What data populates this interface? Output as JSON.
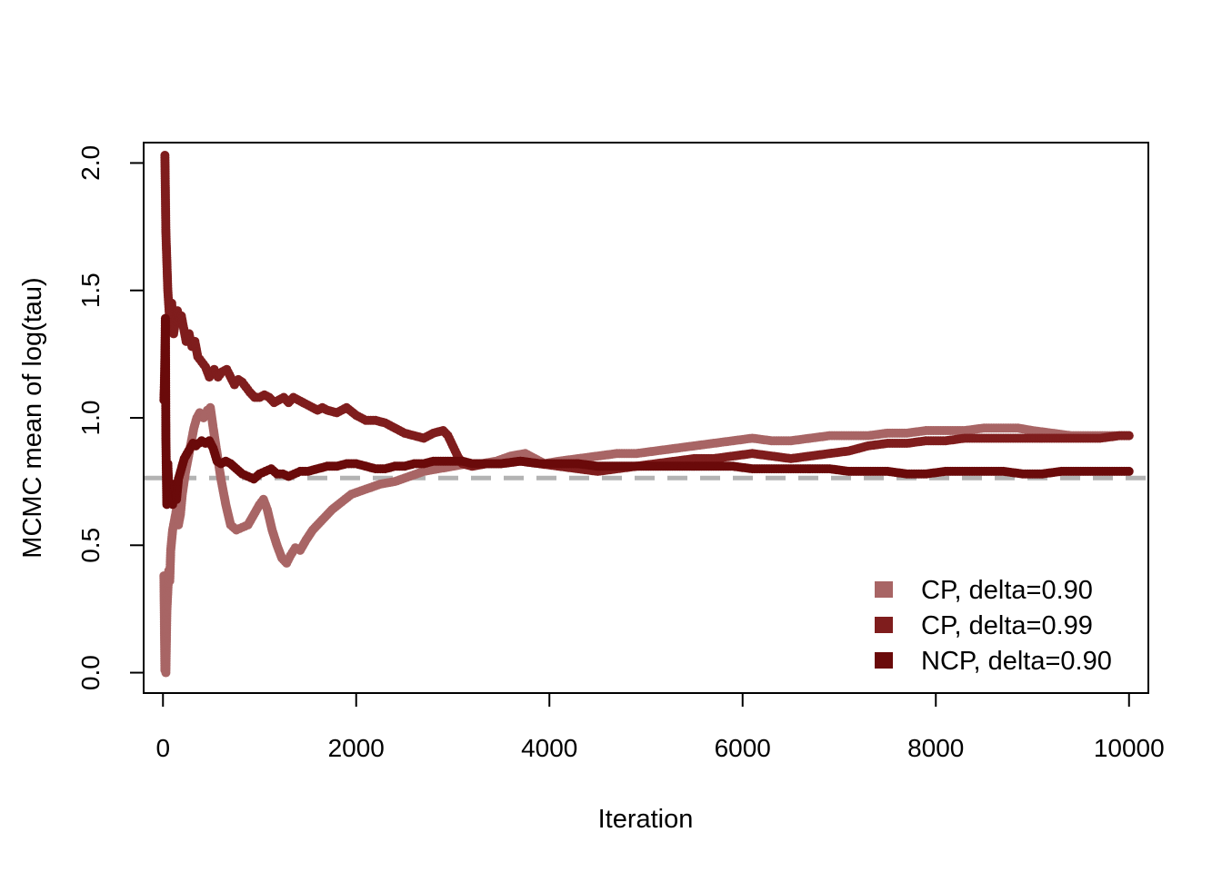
{
  "chart_data": {
    "type": "scatter",
    "title": "",
    "xlabel": "Iteration",
    "ylabel": "MCMC mean of log(tau)",
    "xlim": [
      -200,
      10200
    ],
    "ylim": [
      -0.08,
      2.08
    ],
    "xticks": [
      0,
      2000,
      4000,
      6000,
      8000,
      10000
    ],
    "xtick_labels": [
      "0",
      "2000",
      "4000",
      "6000",
      "8000",
      "10000"
    ],
    "yticks": [
      0.0,
      0.5,
      1.0,
      1.5,
      2.0
    ],
    "ytick_labels": [
      "0.0",
      "0.5",
      "1.0",
      "1.5",
      "2.0"
    ],
    "grid": false,
    "legend_position": "bottom-right",
    "reference_line": {
      "y": 0.764,
      "style": "dashed",
      "color": "#b3b3b3"
    },
    "series": [
      {
        "name": "CP, delta=0.90",
        "color": "#a86565",
        "points": [
          [
            10,
            0.38
          ],
          [
            20,
            0.01
          ],
          [
            30,
            0.0
          ],
          [
            40,
            0.24
          ],
          [
            60,
            0.4
          ],
          [
            70,
            0.36
          ],
          [
            80,
            0.48
          ],
          [
            100,
            0.56
          ],
          [
            120,
            0.6
          ],
          [
            140,
            0.64
          ],
          [
            160,
            0.58
          ],
          [
            180,
            0.62
          ],
          [
            200,
            0.7
          ],
          [
            230,
            0.78
          ],
          [
            260,
            0.84
          ],
          [
            290,
            0.9
          ],
          [
            320,
            0.96
          ],
          [
            350,
            1.0
          ],
          [
            380,
            1.02
          ],
          [
            420,
            1.0
          ],
          [
            460,
            1.03
          ],
          [
            490,
            1.04
          ],
          [
            520,
            0.96
          ],
          [
            560,
            0.86
          ],
          [
            600,
            0.76
          ],
          [
            650,
            0.66
          ],
          [
            700,
            0.58
          ],
          [
            760,
            0.56
          ],
          [
            820,
            0.57
          ],
          [
            880,
            0.58
          ],
          [
            940,
            0.62
          ],
          [
            1000,
            0.66
          ],
          [
            1040,
            0.68
          ],
          [
            1080,
            0.64
          ],
          [
            1130,
            0.56
          ],
          [
            1180,
            0.5
          ],
          [
            1230,
            0.45
          ],
          [
            1280,
            0.43
          ],
          [
            1320,
            0.46
          ],
          [
            1370,
            0.49
          ],
          [
            1420,
            0.48
          ],
          [
            1480,
            0.52
          ],
          [
            1550,
            0.56
          ],
          [
            1650,
            0.6
          ],
          [
            1750,
            0.64
          ],
          [
            1850,
            0.67
          ],
          [
            1950,
            0.7
          ],
          [
            2100,
            0.72
          ],
          [
            2250,
            0.74
          ],
          [
            2400,
            0.75
          ],
          [
            2550,
            0.77
          ],
          [
            2700,
            0.79
          ],
          [
            2850,
            0.8
          ],
          [
            3000,
            0.81
          ],
          [
            3150,
            0.82
          ],
          [
            3300,
            0.82
          ],
          [
            3450,
            0.83
          ],
          [
            3600,
            0.85
          ],
          [
            3750,
            0.86
          ],
          [
            3850,
            0.84
          ],
          [
            3950,
            0.82
          ],
          [
            4100,
            0.83
          ],
          [
            4300,
            0.84
          ],
          [
            4500,
            0.85
          ],
          [
            4700,
            0.86
          ],
          [
            4900,
            0.86
          ],
          [
            5100,
            0.87
          ],
          [
            5300,
            0.88
          ],
          [
            5500,
            0.89
          ],
          [
            5700,
            0.9
          ],
          [
            5900,
            0.91
          ],
          [
            6100,
            0.92
          ],
          [
            6300,
            0.91
          ],
          [
            6500,
            0.91
          ],
          [
            6700,
            0.92
          ],
          [
            6900,
            0.93
          ],
          [
            7100,
            0.93
          ],
          [
            7300,
            0.93
          ],
          [
            7500,
            0.94
          ],
          [
            7700,
            0.94
          ],
          [
            7900,
            0.95
          ],
          [
            8100,
            0.95
          ],
          [
            8300,
            0.95
          ],
          [
            8500,
            0.96
          ],
          [
            8700,
            0.96
          ],
          [
            8850,
            0.96
          ],
          [
            9000,
            0.95
          ],
          [
            9200,
            0.94
          ],
          [
            9400,
            0.93
          ],
          [
            9600,
            0.93
          ],
          [
            9800,
            0.93
          ],
          [
            10000,
            0.93
          ]
        ]
      },
      {
        "name": "CP, delta=0.99",
        "color": "#7f1d1d",
        "points": [
          [
            20,
            2.03
          ],
          [
            30,
            1.73
          ],
          [
            50,
            1.5
          ],
          [
            70,
            1.38
          ],
          [
            90,
            1.45
          ],
          [
            110,
            1.33
          ],
          [
            130,
            1.38
          ],
          [
            150,
            1.42
          ],
          [
            170,
            1.38
          ],
          [
            190,
            1.4
          ],
          [
            210,
            1.36
          ],
          [
            240,
            1.3
          ],
          [
            270,
            1.33
          ],
          [
            300,
            1.28
          ],
          [
            330,
            1.3
          ],
          [
            360,
            1.24
          ],
          [
            400,
            1.22
          ],
          [
            440,
            1.2
          ],
          [
            480,
            1.16
          ],
          [
            530,
            1.19
          ],
          [
            570,
            1.16
          ],
          [
            610,
            1.18
          ],
          [
            660,
            1.19
          ],
          [
            700,
            1.16
          ],
          [
            740,
            1.13
          ],
          [
            780,
            1.15
          ],
          [
            820,
            1.14
          ],
          [
            860,
            1.12
          ],
          [
            900,
            1.1
          ],
          [
            950,
            1.08
          ],
          [
            1000,
            1.08
          ],
          [
            1050,
            1.09
          ],
          [
            1100,
            1.08
          ],
          [
            1150,
            1.06
          ],
          [
            1200,
            1.07
          ],
          [
            1250,
            1.08
          ],
          [
            1300,
            1.06
          ],
          [
            1350,
            1.08
          ],
          [
            1400,
            1.07
          ],
          [
            1450,
            1.06
          ],
          [
            1500,
            1.05
          ],
          [
            1550,
            1.04
          ],
          [
            1600,
            1.03
          ],
          [
            1650,
            1.04
          ],
          [
            1700,
            1.03
          ],
          [
            1800,
            1.02
          ],
          [
            1900,
            1.04
          ],
          [
            2000,
            1.01
          ],
          [
            2100,
            0.99
          ],
          [
            2200,
            0.99
          ],
          [
            2300,
            0.98
          ],
          [
            2400,
            0.96
          ],
          [
            2500,
            0.94
          ],
          [
            2600,
            0.93
          ],
          [
            2700,
            0.92
          ],
          [
            2800,
            0.94
          ],
          [
            2900,
            0.95
          ],
          [
            2950,
            0.93
          ],
          [
            3000,
            0.89
          ],
          [
            3050,
            0.85
          ],
          [
            3100,
            0.82
          ],
          [
            3200,
            0.81
          ],
          [
            3350,
            0.82
          ],
          [
            3500,
            0.82
          ],
          [
            3700,
            0.83
          ],
          [
            3900,
            0.82
          ],
          [
            4100,
            0.81
          ],
          [
            4300,
            0.8
          ],
          [
            4500,
            0.79
          ],
          [
            4700,
            0.8
          ],
          [
            4900,
            0.81
          ],
          [
            5100,
            0.82
          ],
          [
            5300,
            0.83
          ],
          [
            5500,
            0.84
          ],
          [
            5700,
            0.84
          ],
          [
            5900,
            0.85
          ],
          [
            6100,
            0.86
          ],
          [
            6300,
            0.85
          ],
          [
            6500,
            0.84
          ],
          [
            6700,
            0.85
          ],
          [
            6900,
            0.86
          ],
          [
            7100,
            0.87
          ],
          [
            7300,
            0.89
          ],
          [
            7500,
            0.9
          ],
          [
            7700,
            0.9
          ],
          [
            7900,
            0.91
          ],
          [
            8100,
            0.91
          ],
          [
            8300,
            0.92
          ],
          [
            8500,
            0.92
          ],
          [
            8700,
            0.92
          ],
          [
            8900,
            0.92
          ],
          [
            9100,
            0.92
          ],
          [
            9300,
            0.92
          ],
          [
            9500,
            0.92
          ],
          [
            9700,
            0.92
          ],
          [
            9900,
            0.93
          ],
          [
            10000,
            0.93
          ]
        ]
      },
      {
        "name": "NCP, delta=0.90",
        "color": "#6a0a0a",
        "points": [
          [
            10,
            1.07
          ],
          [
            15,
            1.14
          ],
          [
            20,
            1.24
          ],
          [
            25,
            1.39
          ],
          [
            30,
            0.92
          ],
          [
            40,
            0.66
          ],
          [
            50,
            0.82
          ],
          [
            60,
            0.72
          ],
          [
            80,
            0.7
          ],
          [
            100,
            0.66
          ],
          [
            120,
            0.74
          ],
          [
            140,
            0.68
          ],
          [
            160,
            0.76
          ],
          [
            190,
            0.8
          ],
          [
            220,
            0.84
          ],
          [
            250,
            0.86
          ],
          [
            280,
            0.88
          ],
          [
            310,
            0.9
          ],
          [
            340,
            0.89
          ],
          [
            370,
            0.9
          ],
          [
            400,
            0.91
          ],
          [
            440,
            0.9
          ],
          [
            480,
            0.91
          ],
          [
            520,
            0.88
          ],
          [
            560,
            0.83
          ],
          [
            600,
            0.82
          ],
          [
            650,
            0.83
          ],
          [
            700,
            0.82
          ],
          [
            760,
            0.8
          ],
          [
            820,
            0.78
          ],
          [
            880,
            0.77
          ],
          [
            940,
            0.76
          ],
          [
            1000,
            0.78
          ],
          [
            1060,
            0.79
          ],
          [
            1120,
            0.8
          ],
          [
            1180,
            0.78
          ],
          [
            1240,
            0.78
          ],
          [
            1300,
            0.77
          ],
          [
            1360,
            0.78
          ],
          [
            1420,
            0.79
          ],
          [
            1500,
            0.79
          ],
          [
            1600,
            0.8
          ],
          [
            1700,
            0.81
          ],
          [
            1800,
            0.81
          ],
          [
            1900,
            0.82
          ],
          [
            2000,
            0.82
          ],
          [
            2100,
            0.81
          ],
          [
            2200,
            0.8
          ],
          [
            2300,
            0.8
          ],
          [
            2400,
            0.81
          ],
          [
            2500,
            0.81
          ],
          [
            2600,
            0.82
          ],
          [
            2700,
            0.82
          ],
          [
            2800,
            0.83
          ],
          [
            2900,
            0.83
          ],
          [
            3000,
            0.83
          ],
          [
            3100,
            0.83
          ],
          [
            3200,
            0.82
          ],
          [
            3300,
            0.82
          ],
          [
            3500,
            0.82
          ],
          [
            3700,
            0.83
          ],
          [
            3900,
            0.82
          ],
          [
            4100,
            0.82
          ],
          [
            4300,
            0.82
          ],
          [
            4500,
            0.81
          ],
          [
            4700,
            0.81
          ],
          [
            4900,
            0.81
          ],
          [
            5100,
            0.81
          ],
          [
            5300,
            0.81
          ],
          [
            5500,
            0.81
          ],
          [
            5700,
            0.81
          ],
          [
            5900,
            0.81
          ],
          [
            6100,
            0.8
          ],
          [
            6300,
            0.8
          ],
          [
            6500,
            0.8
          ],
          [
            6700,
            0.8
          ],
          [
            6900,
            0.8
          ],
          [
            7100,
            0.79
          ],
          [
            7300,
            0.79
          ],
          [
            7500,
            0.79
          ],
          [
            7700,
            0.78
          ],
          [
            7900,
            0.78
          ],
          [
            8100,
            0.79
          ],
          [
            8300,
            0.79
          ],
          [
            8500,
            0.79
          ],
          [
            8700,
            0.79
          ],
          [
            8900,
            0.78
          ],
          [
            9100,
            0.78
          ],
          [
            9300,
            0.79
          ],
          [
            9500,
            0.79
          ],
          [
            9700,
            0.79
          ],
          [
            9900,
            0.79
          ],
          [
            10000,
            0.79
          ]
        ]
      }
    ]
  }
}
